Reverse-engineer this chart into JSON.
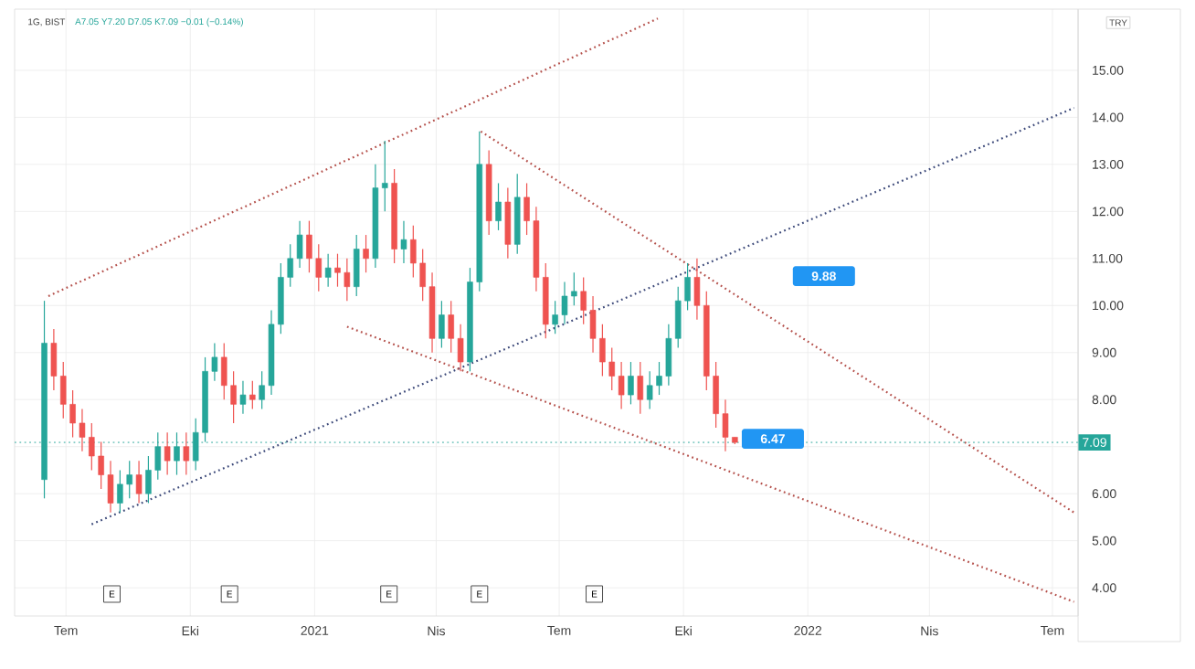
{
  "chart_data": {
    "type": "candlestick",
    "title": "1G, BIST",
    "subtitle": "A7.05 Y7.20 D7.05 K7.09 −0.01 (−0.14%)",
    "ylabel": "TRY",
    "x": [
      "2020-06-15",
      "2020-06-22",
      "2020-06-29",
      "2020-07-06",
      "2020-07-13",
      "2020-07-20",
      "2020-07-27",
      "2020-08-03",
      "2020-08-10",
      "2020-08-17",
      "2020-08-24",
      "2020-08-31",
      "2020-09-07",
      "2020-09-14",
      "2020-09-21",
      "2020-09-28",
      "2020-10-05",
      "2020-10-12",
      "2020-10-19",
      "2020-10-26",
      "2020-11-02",
      "2020-11-09",
      "2020-11-16",
      "2020-11-23",
      "2020-11-30",
      "2020-12-07",
      "2020-12-14",
      "2020-12-21",
      "2020-12-28",
      "2021-01-04",
      "2021-01-11",
      "2021-01-18",
      "2021-01-25",
      "2021-02-01",
      "2021-02-08",
      "2021-02-15",
      "2021-02-22",
      "2021-03-01",
      "2021-03-08",
      "2021-03-15",
      "2021-03-22",
      "2021-03-29",
      "2021-04-05",
      "2021-04-12",
      "2021-04-19",
      "2021-04-26",
      "2021-05-03",
      "2021-05-10",
      "2021-05-17",
      "2021-05-24",
      "2021-05-31",
      "2021-06-07",
      "2021-06-14",
      "2021-06-21",
      "2021-06-28",
      "2021-07-05",
      "2021-07-12",
      "2021-07-19",
      "2021-07-26",
      "2021-08-02",
      "2021-08-09",
      "2021-08-16",
      "2021-08-23",
      "2021-08-30",
      "2021-09-06",
      "2021-09-13",
      "2021-09-20",
      "2021-09-27",
      "2021-10-04",
      "2021-10-11",
      "2021-10-18",
      "2021-10-25",
      "2021-11-01",
      "2021-11-08"
    ],
    "ohlc": [
      [
        6.3,
        10.1,
        5.9,
        9.2
      ],
      [
        9.2,
        9.5,
        8.2,
        8.5
      ],
      [
        8.5,
        8.8,
        7.6,
        7.9
      ],
      [
        7.9,
        8.2,
        7.2,
        7.5
      ],
      [
        7.5,
        7.8,
        6.9,
        7.2
      ],
      [
        7.2,
        7.5,
        6.5,
        6.8
      ],
      [
        6.8,
        7.1,
        6.1,
        6.4
      ],
      [
        6.4,
        6.7,
        5.6,
        5.8
      ],
      [
        5.8,
        6.5,
        5.6,
        6.2
      ],
      [
        6.2,
        6.7,
        5.9,
        6.4
      ],
      [
        6.4,
        6.7,
        5.8,
        6.0
      ],
      [
        6.0,
        6.8,
        5.8,
        6.5
      ],
      [
        6.5,
        7.3,
        6.3,
        7.0
      ],
      [
        7.0,
        7.3,
        6.4,
        6.7
      ],
      [
        6.7,
        7.3,
        6.4,
        7.0
      ],
      [
        7.0,
        7.3,
        6.4,
        6.7
      ],
      [
        6.7,
        7.6,
        6.5,
        7.3
      ],
      [
        7.3,
        8.9,
        7.1,
        8.6
      ],
      [
        8.6,
        9.2,
        8.4,
        8.9
      ],
      [
        8.9,
        9.2,
        8.0,
        8.3
      ],
      [
        8.3,
        8.6,
        7.5,
        7.9
      ],
      [
        7.9,
        8.4,
        7.7,
        8.1
      ],
      [
        8.1,
        8.4,
        7.8,
        8.0
      ],
      [
        8.0,
        8.6,
        7.8,
        8.3
      ],
      [
        8.3,
        9.9,
        8.1,
        9.6
      ],
      [
        9.6,
        10.9,
        9.4,
        10.6
      ],
      [
        10.6,
        11.3,
        10.4,
        11.0
      ],
      [
        11.0,
        11.8,
        10.8,
        11.5
      ],
      [
        11.5,
        11.8,
        10.7,
        11.0
      ],
      [
        11.0,
        11.3,
        10.3,
        10.6
      ],
      [
        10.6,
        11.1,
        10.4,
        10.8
      ],
      [
        10.8,
        11.1,
        10.4,
        10.7
      ],
      [
        10.7,
        11.0,
        10.1,
        10.4
      ],
      [
        10.4,
        11.5,
        10.2,
        11.2
      ],
      [
        11.2,
        11.5,
        10.7,
        11.0
      ],
      [
        11.0,
        13.0,
        10.8,
        12.5
      ],
      [
        12.5,
        13.5,
        12.0,
        12.6
      ],
      [
        12.6,
        12.9,
        10.9,
        11.2
      ],
      [
        11.2,
        11.8,
        10.9,
        11.4
      ],
      [
        11.4,
        11.7,
        10.6,
        10.9
      ],
      [
        10.9,
        11.2,
        10.1,
        10.4
      ],
      [
        10.4,
        10.7,
        9.0,
        9.3
      ],
      [
        9.3,
        10.1,
        9.1,
        9.8
      ],
      [
        9.8,
        10.1,
        9.0,
        9.3
      ],
      [
        9.3,
        9.6,
        8.6,
        8.8
      ],
      [
        8.8,
        10.8,
        8.6,
        10.5
      ],
      [
        10.5,
        13.7,
        10.3,
        13.0
      ],
      [
        13.0,
        13.3,
        11.5,
        11.8
      ],
      [
        11.8,
        12.6,
        11.6,
        12.2
      ],
      [
        12.2,
        12.5,
        11.0,
        11.3
      ],
      [
        11.3,
        12.8,
        11.1,
        12.3
      ],
      [
        12.3,
        12.6,
        11.5,
        11.8
      ],
      [
        11.8,
        12.1,
        10.3,
        10.6
      ],
      [
        10.6,
        10.9,
        9.3,
        9.6
      ],
      [
        9.6,
        10.1,
        9.4,
        9.8
      ],
      [
        9.8,
        10.5,
        9.6,
        10.2
      ],
      [
        10.2,
        10.7,
        10.0,
        10.3
      ],
      [
        10.3,
        10.6,
        9.6,
        9.9
      ],
      [
        9.9,
        10.2,
        9.0,
        9.3
      ],
      [
        9.3,
        9.6,
        8.5,
        8.8
      ],
      [
        8.8,
        9.1,
        8.2,
        8.5
      ],
      [
        8.5,
        8.8,
        7.8,
        8.1
      ],
      [
        8.1,
        8.8,
        7.9,
        8.5
      ],
      [
        8.5,
        8.8,
        7.7,
        8.0
      ],
      [
        8.0,
        8.6,
        7.8,
        8.3
      ],
      [
        8.3,
        8.8,
        8.1,
        8.5
      ],
      [
        8.5,
        9.6,
        8.3,
        9.3
      ],
      [
        9.3,
        10.4,
        9.1,
        10.1
      ],
      [
        10.1,
        10.9,
        9.9,
        10.6
      ],
      [
        10.6,
        11.0,
        9.7,
        10.0
      ],
      [
        10.0,
        10.3,
        8.2,
        8.5
      ],
      [
        8.5,
        8.8,
        7.4,
        7.7
      ],
      [
        7.7,
        8.0,
        6.9,
        7.2
      ],
      [
        7.2,
        7.2,
        7.05,
        7.09
      ]
    ],
    "series": [
      {
        "type": "line",
        "x": [
          "2020-06-18",
          "2021-09-12"
        ],
        "values": [
          10.2,
          16.1
        ],
        "color": "#b5514c",
        "line_style": "dotted"
      },
      {
        "type": "line",
        "x": [
          "2020-07-20",
          "2022-07-17"
        ],
        "values": [
          5.35,
          14.2
        ],
        "color": "#3d4a7a",
        "line_style": "dotted"
      },
      {
        "type": "line",
        "x": [
          "2021-05-04",
          "2022-07-17"
        ],
        "values": [
          13.7,
          5.6
        ],
        "color": "#b5514c",
        "line_style": "dotted"
      },
      {
        "type": "line",
        "x": [
          "2021-01-25",
          "2022-07-17"
        ],
        "values": [
          9.55,
          3.7
        ],
        "color": "#b5514c",
        "line_style": "dotted"
      }
    ],
    "annotations": [
      "9.88",
      "6.47",
      {
        "text": "E",
        "x": "2020-08-04"
      },
      {
        "text": "E",
        "x": "2020-10-30"
      },
      {
        "text": "E",
        "x": "2021-02-25"
      },
      {
        "text": "E",
        "x": "2021-05-03"
      },
      {
        "text": "E",
        "x": "2021-07-27"
      }
    ],
    "ref_lines": [
      {
        "axis": "y",
        "value": 7.09,
        "label": "7.09",
        "color": "#26a69a",
        "line_style": "dotted"
      }
    ],
    "xlim": [
      "2020-05-24",
      "2022-07-20"
    ],
    "xticks": [
      {
        "value": "2020-07-01",
        "label": "Tem"
      },
      {
        "value": "2020-10-01",
        "label": "Eki"
      },
      {
        "value": "2021-01-01",
        "label": "2021"
      },
      {
        "value": "2021-04-01",
        "label": "Nis"
      },
      {
        "value": "2021-07-01",
        "label": "Tem"
      },
      {
        "value": "2021-10-01",
        "label": "Eki"
      },
      {
        "value": "2022-01-01",
        "label": "2022"
      },
      {
        "value": "2022-04-01",
        "label": "Nis"
      },
      {
        "value": "2022-07-01",
        "label": "Tem"
      }
    ],
    "ylim": [
      3.4,
      16.3
    ],
    "yticks": [
      {
        "value": 4,
        "label": "4.00"
      },
      {
        "value": 5,
        "label": "5.00"
      },
      {
        "value": 6,
        "label": "6.00"
      },
      {
        "value": 7,
        "label": null
      },
      {
        "value": 8,
        "label": "8.00"
      },
      {
        "value": 9,
        "label": "9.00"
      },
      {
        "value": 10,
        "label": "10.00"
      },
      {
        "value": 11,
        "label": "11.00"
      },
      {
        "value": 12,
        "label": "12.00"
      },
      {
        "value": 13,
        "label": "13.00"
      },
      {
        "value": 14,
        "label": "14.00"
      },
      {
        "value": 15,
        "label": "15.00"
      }
    ],
    "grid": true
  }
}
